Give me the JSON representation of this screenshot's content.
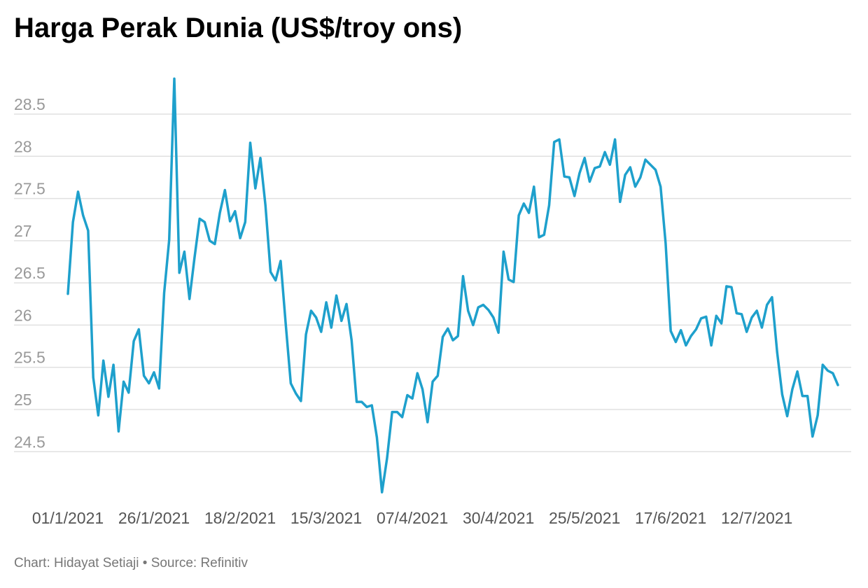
{
  "footer": {
    "chart_credit": "Chart: Hidayat Setiaji",
    "separator": "•",
    "source": "Source: Refinitiv"
  },
  "chart_data": {
    "type": "line",
    "title": "Harga Perak Dunia (US$/troy ons)",
    "xlabel": "",
    "ylabel": "",
    "ylim": [
      24.0,
      29.0
    ],
    "y_ticks": [
      "24.5",
      "25",
      "25.5",
      "26",
      "26.5",
      "27",
      "27.5",
      "28",
      "28.5"
    ],
    "y_tick_values": [
      24.5,
      25.0,
      25.5,
      26.0,
      26.5,
      27.0,
      27.5,
      28.0,
      28.5
    ],
    "x_ticks": [
      "01/1/2021",
      "26/1/2021",
      "18/2/2021",
      "15/3/2021",
      "07/4/2021",
      "30/4/2021",
      "25/5/2021",
      "17/6/2021",
      "12/7/2021"
    ],
    "x_tick_index": [
      0,
      17,
      34,
      51,
      68,
      85,
      102,
      119,
      136
    ],
    "grid": true,
    "line_color": "#1ea0cc",
    "series": [
      {
        "values": [
          26.37,
          27.22,
          27.58,
          27.3,
          27.12,
          25.38,
          24.93,
          25.58,
          25.15,
          25.53,
          24.74,
          25.33,
          25.2,
          25.81,
          25.95,
          25.4,
          25.31,
          25.44,
          25.25,
          26.38,
          27.01,
          28.92,
          26.62,
          26.87,
          26.31,
          26.8,
          27.26,
          27.22,
          27.0,
          26.96,
          27.33,
          27.6,
          27.23,
          27.35,
          27.03,
          27.22,
          28.16,
          27.62,
          27.98,
          27.42,
          26.63,
          26.53,
          26.76,
          26.01,
          25.31,
          25.19,
          25.1,
          25.89,
          26.17,
          26.09,
          25.92,
          26.27,
          25.97,
          26.35,
          26.05,
          26.25,
          25.82,
          25.09,
          25.09,
          25.03,
          25.05,
          24.67,
          24.02,
          24.42,
          24.97,
          24.97,
          24.91,
          25.17,
          25.13,
          25.43,
          25.24,
          24.85,
          25.33,
          25.4,
          25.86,
          25.96,
          25.82,
          25.87,
          26.58,
          26.17,
          26.0,
          26.21,
          26.24,
          26.18,
          26.09,
          25.91,
          26.87,
          26.54,
          26.51,
          27.3,
          27.44,
          27.33,
          27.64,
          27.04,
          27.07,
          27.42,
          28.17,
          28.2,
          27.76,
          27.75,
          27.53,
          27.8,
          27.98,
          27.7,
          27.86,
          27.88,
          28.05,
          27.9,
          28.2,
          27.46,
          27.78,
          27.87,
          27.64,
          27.75,
          27.96,
          27.9,
          27.84,
          27.64,
          26.97,
          25.93,
          25.8,
          25.94,
          25.76,
          25.87,
          25.95,
          26.08,
          26.1,
          25.76,
          26.11,
          26.02,
          26.46,
          26.45,
          26.14,
          26.13,
          25.92,
          26.09,
          26.17,
          25.97,
          26.24,
          26.33,
          25.68,
          25.18,
          24.92,
          25.24,
          25.45,
          25.16,
          25.16,
          24.68,
          24.93,
          25.53,
          25.46,
          25.43,
          25.29
        ]
      }
    ]
  }
}
